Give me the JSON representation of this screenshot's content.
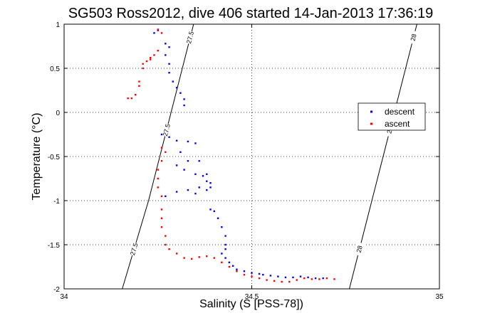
{
  "chart_data": {
    "type": "scatter",
    "title": "SG503 Ross2012, dive 406 started 14-Jan-2013 17:36:19",
    "xlabel": "Salinity (S [PSS-78])",
    "ylabel": "Temperature (°C)",
    "xlim": [
      34,
      35
    ],
    "ylim": [
      -2,
      1
    ],
    "xticks": [
      "34",
      "34.5",
      "35"
    ],
    "yticks": [
      "-2",
      "-1.5",
      "-1",
      "-0.5",
      "0",
      "0.5",
      "1"
    ],
    "grid": true,
    "legend": "right",
    "isopycnals": [
      {
        "label": "27.5",
        "points": [
          [
            34.155,
            -2.0
          ],
          [
            34.19,
            -1.5
          ],
          [
            34.225,
            -1.0
          ],
          [
            34.255,
            -0.5
          ],
          [
            34.285,
            0.0
          ],
          [
            34.315,
            0.5
          ],
          [
            34.345,
            1.0
          ]
        ]
      },
      {
        "label": "28",
        "points": [
          [
            34.76,
            -2.0
          ],
          [
            34.79,
            -1.5
          ],
          [
            34.82,
            -1.0
          ],
          [
            34.85,
            -0.5
          ],
          [
            34.88,
            0.0
          ],
          [
            34.91,
            0.5
          ],
          [
            34.94,
            1.0
          ]
        ]
      }
    ],
    "series": [
      {
        "name": "descent",
        "color": "#0000ff",
        "points": [
          [
            34.25,
            0.93
          ],
          [
            34.24,
            0.9
          ],
          [
            34.27,
            0.78
          ],
          [
            34.28,
            0.74
          ],
          [
            34.27,
            0.65
          ],
          [
            34.28,
            0.55
          ],
          [
            34.28,
            0.45
          ],
          [
            34.29,
            0.35
          ],
          [
            34.3,
            0.28
          ],
          [
            34.31,
            0.22
          ],
          [
            34.32,
            0.15
          ],
          [
            34.32,
            0.08
          ],
          [
            34.26,
            -0.25
          ],
          [
            34.28,
            -0.28
          ],
          [
            34.3,
            -0.32
          ],
          [
            34.33,
            -0.33
          ],
          [
            34.35,
            -0.35
          ],
          [
            34.31,
            -0.45
          ],
          [
            34.33,
            -0.55
          ],
          [
            34.36,
            -0.55
          ],
          [
            34.3,
            -0.6
          ],
          [
            34.32,
            -0.65
          ],
          [
            34.35,
            -0.7
          ],
          [
            34.37,
            -0.72
          ],
          [
            34.38,
            -0.7
          ],
          [
            34.38,
            -0.78
          ],
          [
            34.39,
            -0.8
          ],
          [
            34.36,
            -0.85
          ],
          [
            34.38,
            -0.88
          ],
          [
            34.39,
            -0.85
          ],
          [
            34.33,
            -0.88
          ],
          [
            34.3,
            -0.9
          ],
          [
            34.27,
            -0.95
          ],
          [
            34.35,
            -0.92
          ],
          [
            34.39,
            -1.1
          ],
          [
            34.4,
            -1.12
          ],
          [
            34.41,
            -1.2
          ],
          [
            34.42,
            -1.3
          ],
          [
            34.43,
            -1.4
          ],
          [
            34.43,
            -1.5
          ],
          [
            34.43,
            -1.55
          ],
          [
            34.42,
            -1.6
          ],
          [
            34.43,
            -1.65
          ],
          [
            34.44,
            -1.7
          ],
          [
            34.45,
            -1.74
          ],
          [
            34.46,
            -1.78
          ],
          [
            34.48,
            -1.8
          ],
          [
            34.5,
            -1.82
          ],
          [
            34.52,
            -1.83
          ],
          [
            34.53,
            -1.84
          ],
          [
            34.55,
            -1.85
          ],
          [
            34.57,
            -1.86
          ],
          [
            34.59,
            -1.87
          ],
          [
            34.61,
            -1.87
          ],
          [
            34.63,
            -1.86
          ],
          [
            34.65,
            -1.87
          ],
          [
            34.67,
            -1.88
          ],
          [
            34.69,
            -1.88
          ]
        ]
      },
      {
        "name": "ascent",
        "color": "#ff0000",
        "points": [
          [
            34.25,
            0.94
          ],
          [
            34.26,
            0.9
          ],
          [
            34.25,
            0.7
          ],
          [
            34.24,
            0.65
          ],
          [
            34.23,
            0.62
          ],
          [
            34.23,
            0.6
          ],
          [
            34.22,
            0.58
          ],
          [
            34.21,
            0.55
          ],
          [
            34.21,
            0.5
          ],
          [
            34.2,
            0.35
          ],
          [
            34.2,
            0.3
          ],
          [
            34.19,
            0.2
          ],
          [
            34.18,
            0.16
          ],
          [
            34.17,
            0.16
          ],
          [
            34.26,
            -0.4
          ],
          [
            34.27,
            -0.45
          ],
          [
            34.26,
            -0.55
          ],
          [
            34.25,
            -0.65
          ],
          [
            34.25,
            -0.75
          ],
          [
            34.25,
            -0.85
          ],
          [
            34.26,
            -0.95
          ],
          [
            34.26,
            -1.1
          ],
          [
            34.26,
            -1.2
          ],
          [
            34.26,
            -1.3
          ],
          [
            34.27,
            -1.4
          ],
          [
            34.27,
            -1.5
          ],
          [
            34.28,
            -1.55
          ],
          [
            34.3,
            -1.6
          ],
          [
            34.32,
            -1.65
          ],
          [
            34.34,
            -1.66
          ],
          [
            34.36,
            -1.64
          ],
          [
            34.38,
            -1.63
          ],
          [
            34.4,
            -1.65
          ],
          [
            34.42,
            -1.7
          ],
          [
            34.44,
            -1.75
          ],
          [
            34.46,
            -1.8
          ],
          [
            34.48,
            -1.84
          ],
          [
            34.5,
            -1.86
          ],
          [
            34.52,
            -1.88
          ],
          [
            34.54,
            -1.9
          ],
          [
            34.56,
            -1.91
          ],
          [
            34.58,
            -1.92
          ],
          [
            34.6,
            -1.92
          ],
          [
            34.62,
            -1.9
          ],
          [
            34.64,
            -1.88
          ],
          [
            34.66,
            -1.89
          ],
          [
            34.68,
            -1.89
          ],
          [
            34.7,
            -1.88
          ],
          [
            34.72,
            -1.89
          ]
        ]
      }
    ]
  }
}
